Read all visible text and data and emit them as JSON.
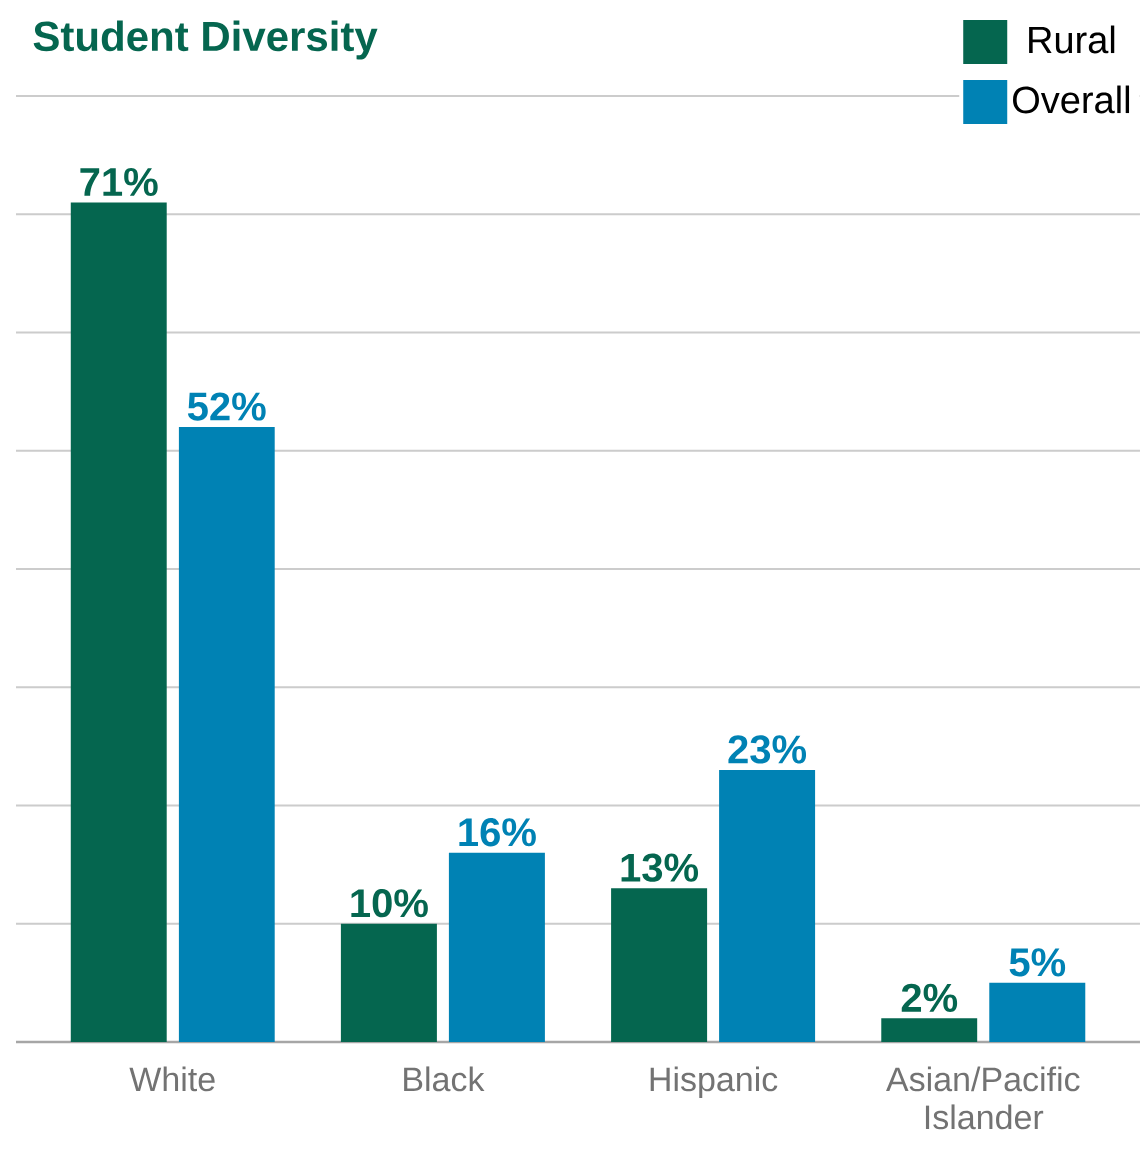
{
  "chart_data": {
    "type": "bar",
    "title": "Student Diversity",
    "categories": [
      "White",
      "Black",
      "Hispanic",
      "Asian/Pacific Islander"
    ],
    "series": [
      {
        "name": "Rural",
        "color": "#05664f",
        "values": [
          71,
          10,
          13,
          2
        ],
        "value_labels": [
          "71%",
          "10%",
          "13%",
          "2%"
        ]
      },
      {
        "name": "Overall",
        "color": "#0082b4",
        "values": [
          52,
          16,
          23,
          5
        ],
        "value_labels": [
          "52%",
          "16%",
          "23%",
          "5%"
        ]
      }
    ],
    "ylim": [
      0,
      80
    ],
    "yticks": [
      {
        "value": 10,
        "label": null
      },
      {
        "value": 20,
        "label": null
      },
      {
        "value": 30,
        "label": null
      },
      {
        "value": 40,
        "label": null
      },
      {
        "value": 50,
        "label": null
      },
      {
        "value": 60,
        "label": null
      },
      {
        "value": 70,
        "label": null
      },
      {
        "value": 80,
        "label": null
      }
    ],
    "tick_labels": "x",
    "grid": "y",
    "legend": "top right"
  }
}
